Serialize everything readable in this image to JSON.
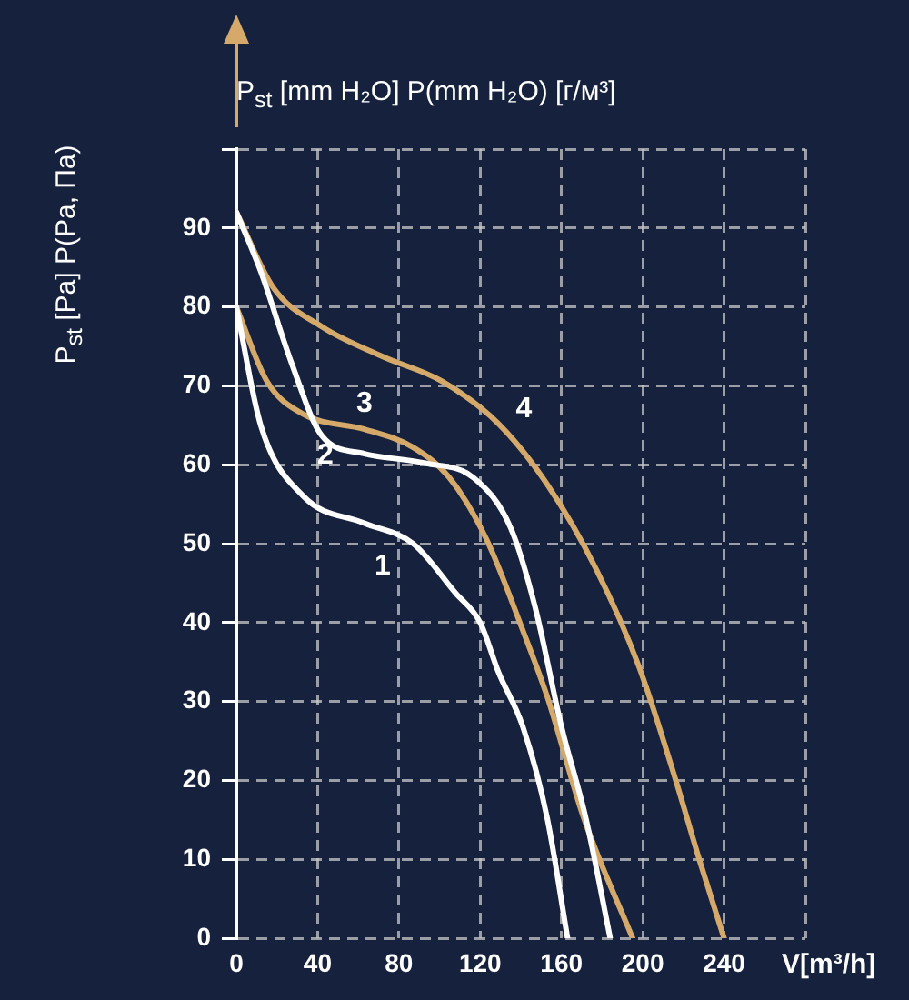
{
  "chart_data": {
    "type": "line",
    "title": "P$_{st}$ [mm H₂O] P(mm H₂O) [г/м³]",
    "ylabel": "P$_{st}$ [Pa] P(Pa, Па)",
    "xlabel": "V[m³/h]",
    "xlim": [
      0,
      280
    ],
    "xticks": [
      0,
      40,
      80,
      120,
      160,
      200,
      240,
      {
        "value": 280,
        "label": null
      }
    ],
    "ylim": [
      0,
      100
    ],
    "yticks": [
      0,
      10,
      20,
      30,
      40,
      50,
      60,
      70,
      80,
      90,
      {
        "value": 100,
        "label": null
      }
    ],
    "grid": true,
    "legend": false,
    "marker": "none",
    "line_style": "solid",
    "series": [
      {
        "name": "1",
        "color": "#ffffff",
        "x": [
          0,
          12,
          33,
          63,
          87,
          108,
          120,
          129,
          141,
          153,
          163
        ],
        "values": [
          80,
          65,
          56,
          52.6,
          50,
          43.7,
          40,
          33.7,
          26.8,
          15.2,
          0
        ]
      },
      {
        "name": "2",
        "color": "#ffffff",
        "x": [
          0,
          12,
          27,
          42,
          63,
          93,
          117,
          135,
          147,
          160,
          172,
          184
        ],
        "values": [
          92,
          84.5,
          73,
          63.7,
          61.4,
          60.2,
          58.3,
          52,
          42,
          26.8,
          15.2,
          0
        ]
      },
      {
        "name": "3",
        "color": "#d4a96a",
        "x": [
          0,
          15,
          33,
          63,
          87,
          105,
          123,
          141,
          153,
          171,
          195
        ],
        "values": [
          80,
          70.6,
          66.4,
          64.5,
          62.2,
          58.3,
          50.6,
          39,
          30.6,
          15.2,
          0
        ]
      },
      {
        "name": "4",
        "color": "#d4a96a",
        "x": [
          0,
          18,
          42,
          72,
          101,
          129,
          153,
          177,
          198,
          216,
          228,
          240
        ],
        "values": [
          92,
          82.5,
          77.5,
          73.7,
          70.6,
          65.2,
          57.5,
          46.8,
          34.5,
          20.2,
          9.8,
          0
        ]
      }
    ]
  }
}
